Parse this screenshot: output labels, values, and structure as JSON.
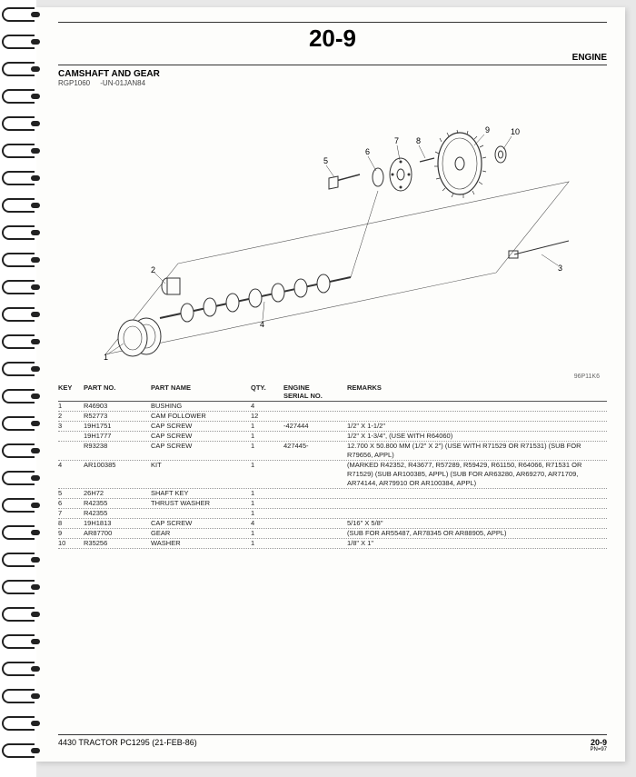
{
  "page": {
    "number": "20-9",
    "group_right": "ENGINE",
    "section_title": "CAMSHAFT AND GEAR",
    "drawing_ref": "RGP1060",
    "drawing_date": "-UN-01JAN84",
    "diagram_code": "96P11K6"
  },
  "columns": {
    "key": "KEY",
    "part": "PART NO.",
    "name": "PART NAME",
    "qty": "QTY.",
    "serial1": "ENGINE",
    "serial2": "SERIAL NO.",
    "remarks": "REMARKS"
  },
  "rows": [
    {
      "key": "1",
      "part": "R46903",
      "name": "BUSHING",
      "qty": "4",
      "serial": "",
      "rem": ""
    },
    {
      "key": "2",
      "part": "R52773",
      "name": "CAM FOLLOWER",
      "qty": "12",
      "serial": "",
      "rem": ""
    },
    {
      "key": "3",
      "part": "19H1751",
      "name": "CAP SCREW",
      "qty": "1",
      "serial": "-427444",
      "rem": "1/2\" X 1-1/2\""
    },
    {
      "key": "",
      "part": "19H1777",
      "name": "CAP SCREW",
      "qty": "1",
      "serial": "",
      "rem": "1/2\" X 1-3/4\", (USE WITH R64060)"
    },
    {
      "key": "",
      "part": "R93238",
      "name": "CAP SCREW",
      "qty": "1",
      "serial": "427445-",
      "rem": "12.700 X 50.800 MM (1/2\" X 2\") (USE WITH R71529 OR R71531) (SUB FOR R79656, APPL)"
    },
    {
      "key": "4",
      "part": "AR100385",
      "name": "KIT",
      "qty": "1",
      "serial": "",
      "rem": "(MARKED R42352, R43677, R57289, R59429, R61150, R64066, R71531 OR R71529) (SUB AR100385, APPL) (SUB FOR AR63280, AR69270, AR71709, AR74144, AR79910 OR AR100384, APPL)"
    },
    {
      "key": "5",
      "part": "26H72",
      "name": "SHAFT KEY",
      "qty": "1",
      "serial": "",
      "rem": ""
    },
    {
      "key": "6",
      "part": "R42355",
      "name": "THRUST WASHER",
      "qty": "1",
      "serial": "",
      "rem": ""
    },
    {
      "key": "7",
      "part": "R42355",
      "name": "",
      "qty": "1",
      "serial": "",
      "rem": ""
    },
    {
      "key": "8",
      "part": "19H1813",
      "name": "CAP SCREW",
      "qty": "4",
      "serial": "",
      "rem": "5/16\" X 5/8\""
    },
    {
      "key": "9",
      "part": "AR87700",
      "name": "GEAR",
      "qty": "1",
      "serial": "",
      "rem": "(SUB FOR AR55487, AR78345 OR AR88905, APPL)"
    },
    {
      "key": "10",
      "part": "R35256",
      "name": "WASHER",
      "qty": "1",
      "serial": "",
      "rem": "1/8\" X 1\""
    }
  ],
  "footer": {
    "left": "4430 TRACTOR    PC1295    (21-FEB-86)",
    "right_main": "20-9",
    "right_sub": "PN=97"
  },
  "callouts": [
    "1",
    "2",
    "3",
    "4",
    "5",
    "6",
    "7",
    "8",
    "9",
    "10"
  ],
  "style": {
    "page_bg": "#fdfdfb",
    "ink": "#222222"
  }
}
